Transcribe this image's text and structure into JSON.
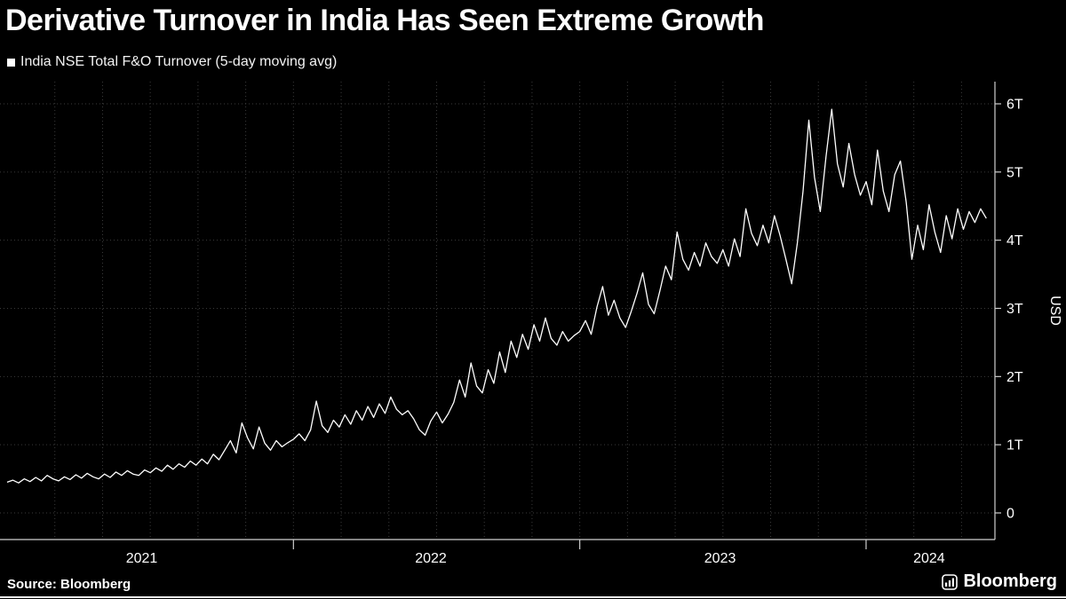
{
  "title": "Derivative Turnover in India Has Seen Extreme Growth",
  "legend": {
    "label": "India NSE Total F&O Turnover (5-day moving avg)",
    "swatch_color": "#ffffff"
  },
  "source": "Source: Bloomberg",
  "brand": "Bloomberg",
  "colors": {
    "background": "#000000",
    "line": "#ffffff",
    "grid": "#3b3b3b",
    "axis": "#cfcfcf",
    "text": "#ffffff"
  },
  "chart_data": {
    "type": "line",
    "title": "Derivative Turnover in India Has Seen Extreme Growth",
    "xlabel": "",
    "ylabel": "USD",
    "unit": "trillion USD",
    "grid": "dotted",
    "legend_position": "top-left",
    "xlim": [
      2021.0,
      2024.45
    ],
    "ylim": [
      0,
      6.3
    ],
    "y_ticks": [
      {
        "value": 0,
        "label": "0"
      },
      {
        "value": 1,
        "label": "1T"
      },
      {
        "value": 2,
        "label": "2T"
      },
      {
        "value": 3,
        "label": "3T"
      },
      {
        "value": 4,
        "label": "4T"
      },
      {
        "value": 5,
        "label": "5T"
      },
      {
        "value": 6,
        "label": "6T"
      }
    ],
    "x_year_boundaries": [
      2022,
      2023,
      2024
    ],
    "x_year_labels": [
      {
        "label": "2021",
        "t": 2021.47
      },
      {
        "label": "2022",
        "t": 2022.48
      },
      {
        "label": "2023",
        "t": 2023.49
      },
      {
        "label": "2024",
        "t": 2024.22
      }
    ],
    "series": [
      {
        "name": "India NSE Total F&O Turnover (5-day moving avg)",
        "color": "#ffffff",
        "x_start": 2021.0,
        "x_step": 0.02,
        "values": [
          0.45,
          0.48,
          0.44,
          0.5,
          0.46,
          0.52,
          0.47,
          0.55,
          0.5,
          0.47,
          0.53,
          0.49,
          0.56,
          0.51,
          0.58,
          0.53,
          0.5,
          0.57,
          0.52,
          0.6,
          0.55,
          0.62,
          0.57,
          0.55,
          0.63,
          0.59,
          0.66,
          0.61,
          0.7,
          0.64,
          0.72,
          0.67,
          0.76,
          0.7,
          0.79,
          0.72,
          0.86,
          0.78,
          0.92,
          1.06,
          0.88,
          1.32,
          1.1,
          0.94,
          1.26,
          1.02,
          0.92,
          1.06,
          0.97,
          1.03,
          1.08,
          1.16,
          1.06,
          1.22,
          1.64,
          1.28,
          1.18,
          1.36,
          1.26,
          1.44,
          1.3,
          1.5,
          1.36,
          1.56,
          1.4,
          1.6,
          1.46,
          1.7,
          1.52,
          1.44,
          1.5,
          1.38,
          1.22,
          1.14,
          1.35,
          1.48,
          1.32,
          1.45,
          1.62,
          1.95,
          1.7,
          2.2,
          1.86,
          1.76,
          2.1,
          1.9,
          2.36,
          2.06,
          2.52,
          2.28,
          2.62,
          2.4,
          2.76,
          2.52,
          2.86,
          2.56,
          2.46,
          2.66,
          2.52,
          2.6,
          2.66,
          2.82,
          2.62,
          3.02,
          3.32,
          2.9,
          3.12,
          2.86,
          2.72,
          2.96,
          3.22,
          3.52,
          3.06,
          2.92,
          3.26,
          3.62,
          3.42,
          4.12,
          3.72,
          3.56,
          3.82,
          3.62,
          3.96,
          3.76,
          3.66,
          3.86,
          3.62,
          4.02,
          3.76,
          4.46,
          4.1,
          3.92,
          4.22,
          3.96,
          4.36,
          4.06,
          3.72,
          3.36,
          3.96,
          4.72,
          5.76,
          4.92,
          4.42,
          5.22,
          5.92,
          5.12,
          4.78,
          5.42,
          4.96,
          4.66,
          4.86,
          4.52,
          5.32,
          4.72,
          4.42,
          4.96,
          5.16,
          4.56,
          3.72,
          4.22,
          3.86,
          4.52,
          4.12,
          3.82,
          4.36,
          4.02,
          4.46,
          4.16,
          4.42,
          4.26,
          4.46,
          4.32
        ]
      }
    ]
  }
}
